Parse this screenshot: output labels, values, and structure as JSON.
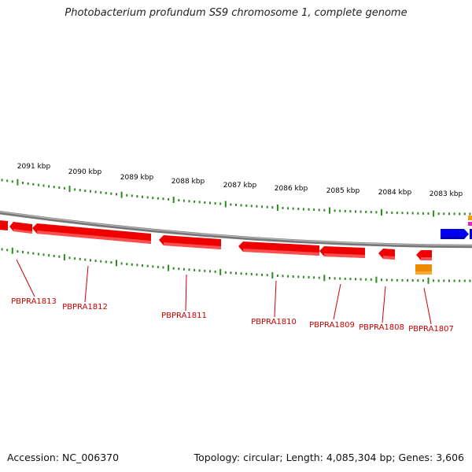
{
  "title": "Photobacterium profundum SS9 chromosome 1, complete genome",
  "footer": {
    "accession": "Accession: NC_006370",
    "summary": "Topology: circular; Length: 4,085,304 bp; Genes: 3,606"
  },
  "ruler": {
    "labels": [
      "2091 kbp",
      "2090 kbp",
      "2089 kbp",
      "2088 kbp",
      "2087 kbp",
      "2086 kbp",
      "2085 kbp",
      "2084 kbp",
      "2083 kbp"
    ]
  },
  "genes": {
    "labels": [
      "PBPRA1813",
      "PBPRA1812",
      "PBPRA1811",
      "PBPRA1810",
      "PBPRA1809",
      "PBPRA1808",
      "PBPRA1807"
    ]
  },
  "colors": {
    "gene_reverse": "#ee0000",
    "gene_forward": "#0000ee",
    "gene_other": "#f08a00",
    "tick": "#2e8b20",
    "backbone": "#888888",
    "label": "#cc0000"
  }
}
